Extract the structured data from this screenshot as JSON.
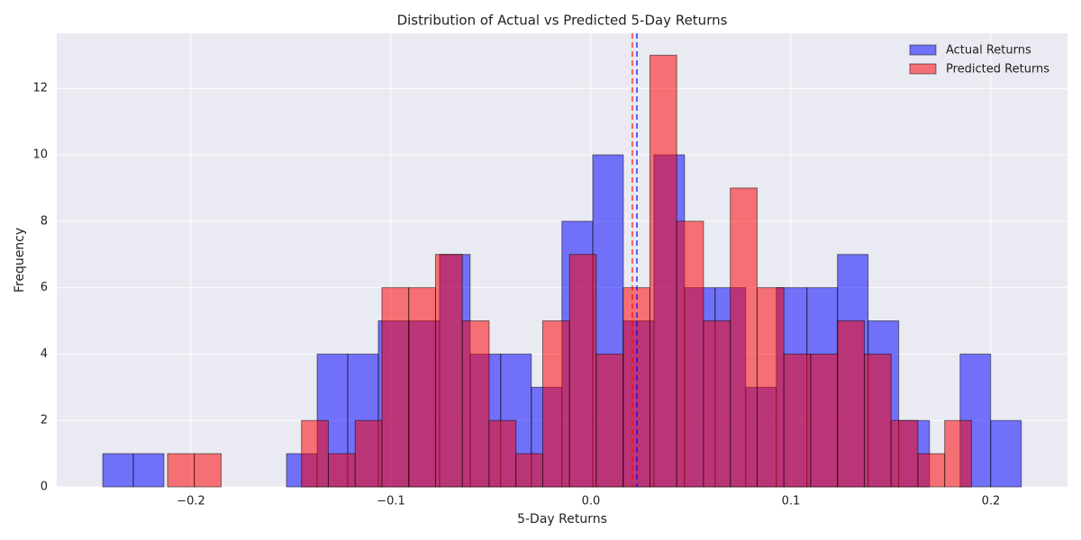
{
  "chart_data": {
    "type": "histogram",
    "title": "Distribution of Actual vs Predicted 5-Day Returns",
    "x_label": "5-Day Returns",
    "y_label": "Frequency",
    "xlim": [
      -0.2671,
      0.2383
    ],
    "ylim": [
      0,
      13.66
    ],
    "xticks": [
      {
        "value": -0.2,
        "label": "−0.2"
      },
      {
        "value": -0.1,
        "label": "−0.1"
      },
      {
        "value": 0,
        "label": "0.0"
      },
      {
        "value": 0.1,
        "label": "0.1"
      },
      {
        "value": 0.2,
        "label": "0.2"
      }
    ],
    "yticks": [
      0,
      2,
      4,
      6,
      8,
      10,
      12
    ],
    "grid": true,
    "legend": "upper right",
    "series": [
      {
        "name": "Actual Returns",
        "color": "#0000ff",
        "mean": 0.023,
        "bins": [
          -0.2441,
          -0.2288,
          -0.2135,
          -0.1982,
          -0.1829,
          -0.1676,
          -0.1522,
          -0.1369,
          -0.1216,
          -0.1063,
          -0.091,
          -0.0757,
          -0.0604,
          -0.0451,
          -0.0298,
          -0.0145,
          0.0009,
          0.0162,
          0.0315,
          0.0468,
          0.0621,
          0.0774,
          0.0927,
          0.108,
          0.1233,
          0.1386,
          0.1539,
          0.1693,
          0.1846,
          0.1999,
          0.2152
        ],
        "values": [
          1,
          1,
          0,
          0,
          0,
          0,
          1,
          4,
          4,
          5,
          5,
          7,
          4,
          4,
          3,
          8,
          10,
          5,
          10,
          6,
          6,
          3,
          6,
          6,
          7,
          5,
          2,
          0,
          4,
          2
        ]
      },
      {
        "name": "Predicted Returns",
        "color": "#ff0000",
        "mean": 0.0207,
        "bins": [
          -0.2117,
          -0.1983,
          -0.1849,
          -0.1715,
          -0.1581,
          -0.1447,
          -0.1313,
          -0.1179,
          -0.1045,
          -0.0911,
          -0.0777,
          -0.0643,
          -0.0509,
          -0.0375,
          -0.0241,
          -0.0107,
          0.0027,
          0.0161,
          0.0295,
          0.0429,
          0.0563,
          0.0697,
          0.0831,
          0.0965,
          0.1099,
          0.1233,
          0.1367,
          0.1501,
          0.1635,
          0.1769,
          0.1903
        ],
        "values": [
          1,
          1,
          0,
          0,
          0,
          2,
          1,
          2,
          6,
          6,
          7,
          5,
          2,
          1,
          5,
          7,
          4,
          6,
          13,
          8,
          5,
          9,
          6,
          4,
          4,
          5,
          4,
          2,
          1,
          2
        ]
      }
    ]
  }
}
